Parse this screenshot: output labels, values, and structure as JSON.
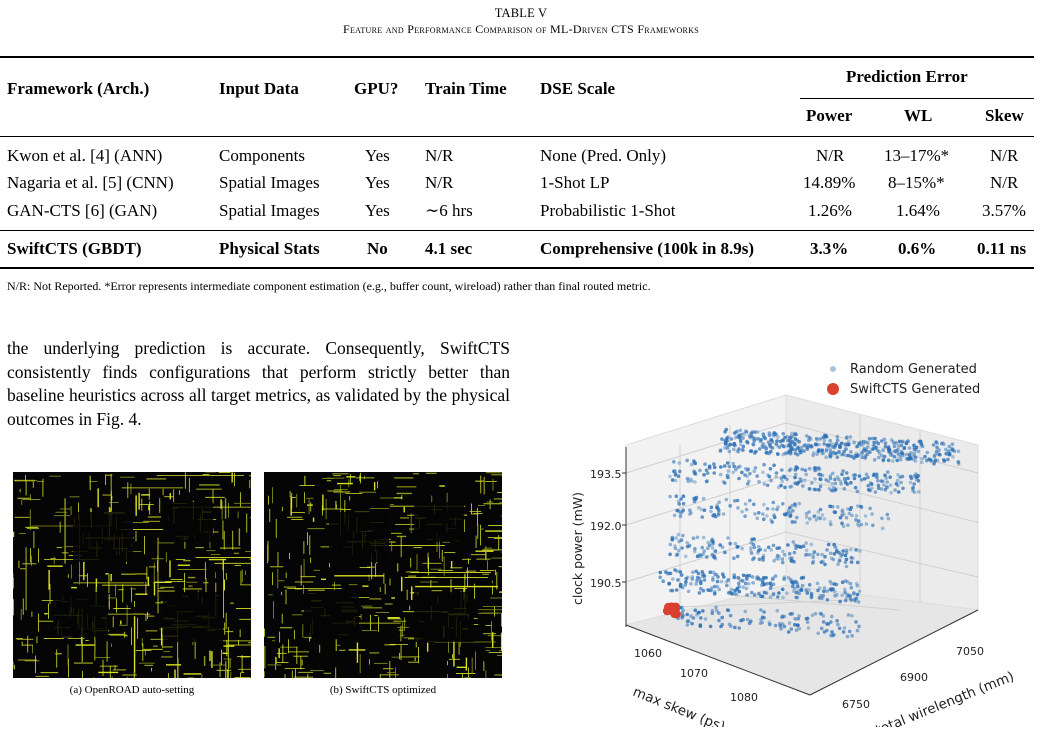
{
  "table": {
    "label": "TABLE V",
    "title": "Feature and Performance Comparison of ML-Driven CTS Frameworks",
    "headers": {
      "framework": "Framework (Arch.)",
      "input": "Input Data",
      "gpu": "GPU?",
      "train": "Train Time",
      "dse": "DSE Scale",
      "pred_group": "Prediction Error",
      "power": "Power",
      "wl": "WL",
      "skew": "Skew"
    },
    "rows": [
      {
        "framework": "Kwon et al. [4] (ANN)",
        "input": "Components",
        "gpu": "Yes",
        "train": "N/R",
        "dse": "None (Pred. Only)",
        "power": "N/R",
        "wl": "13–17%*",
        "skew": "N/R"
      },
      {
        "framework": "Nagaria et al. [5] (CNN)",
        "input": "Spatial Images",
        "gpu": "Yes",
        "train": "N/R",
        "dse": "1-Shot LP",
        "power": "14.89%",
        "wl": "8–15%*",
        "skew": "N/R"
      },
      {
        "framework": "GAN-CTS [6] (GAN)",
        "input": "Spatial Images",
        "gpu": "Yes",
        "train": "∼6 hrs",
        "dse": "Probabilistic 1-Shot",
        "power": "1.26%",
        "wl": "1.64%",
        "skew": "3.57%"
      }
    ],
    "highlight_row": {
      "framework": "SwiftCTS (GBDT)",
      "input": "Physical Stats",
      "gpu": "No",
      "train": "4.1 sec",
      "dse": "Comprehensive (100k in 8.9s)",
      "power": "3.3%",
      "wl": "0.6%",
      "skew": "0.11 ns"
    },
    "note": "N/R: Not Reported. *Error represents intermediate component estimation (e.g., buffer count, wireload) rather than final routed metric."
  },
  "body_text": "the underlying prediction is accurate. Consequently, SwiftCTS consistently finds configurations that perform strictly better than baseline heuristics across all target metrics, as validated by the physical outcomes in Fig. 4.",
  "figure_left": {
    "caption_a": "(a) OpenROAD auto-setting",
    "caption_b": "(b) SwiftCTS optimized"
  },
  "chart_data": {
    "type": "scatter",
    "title": "",
    "xlabel": "max skew (ps)",
    "ylabel": "total wirelength (mm)",
    "zlabel": "clock power (mW)",
    "x_ticks": [
      "1060",
      "1070",
      "1080"
    ],
    "y_ticks": [
      "6750",
      "6900",
      "7050"
    ],
    "z_ticks": [
      "190.5",
      "192.0",
      "193.5"
    ],
    "legend_position": "top-right",
    "colors": {
      "random": "#1f77b4",
      "swift": "#d62728"
    },
    "series": [
      {
        "name": "Random Generated",
        "approximate": true
      },
      {
        "name": "SwiftCTS Generated",
        "approximate": true
      }
    ]
  }
}
